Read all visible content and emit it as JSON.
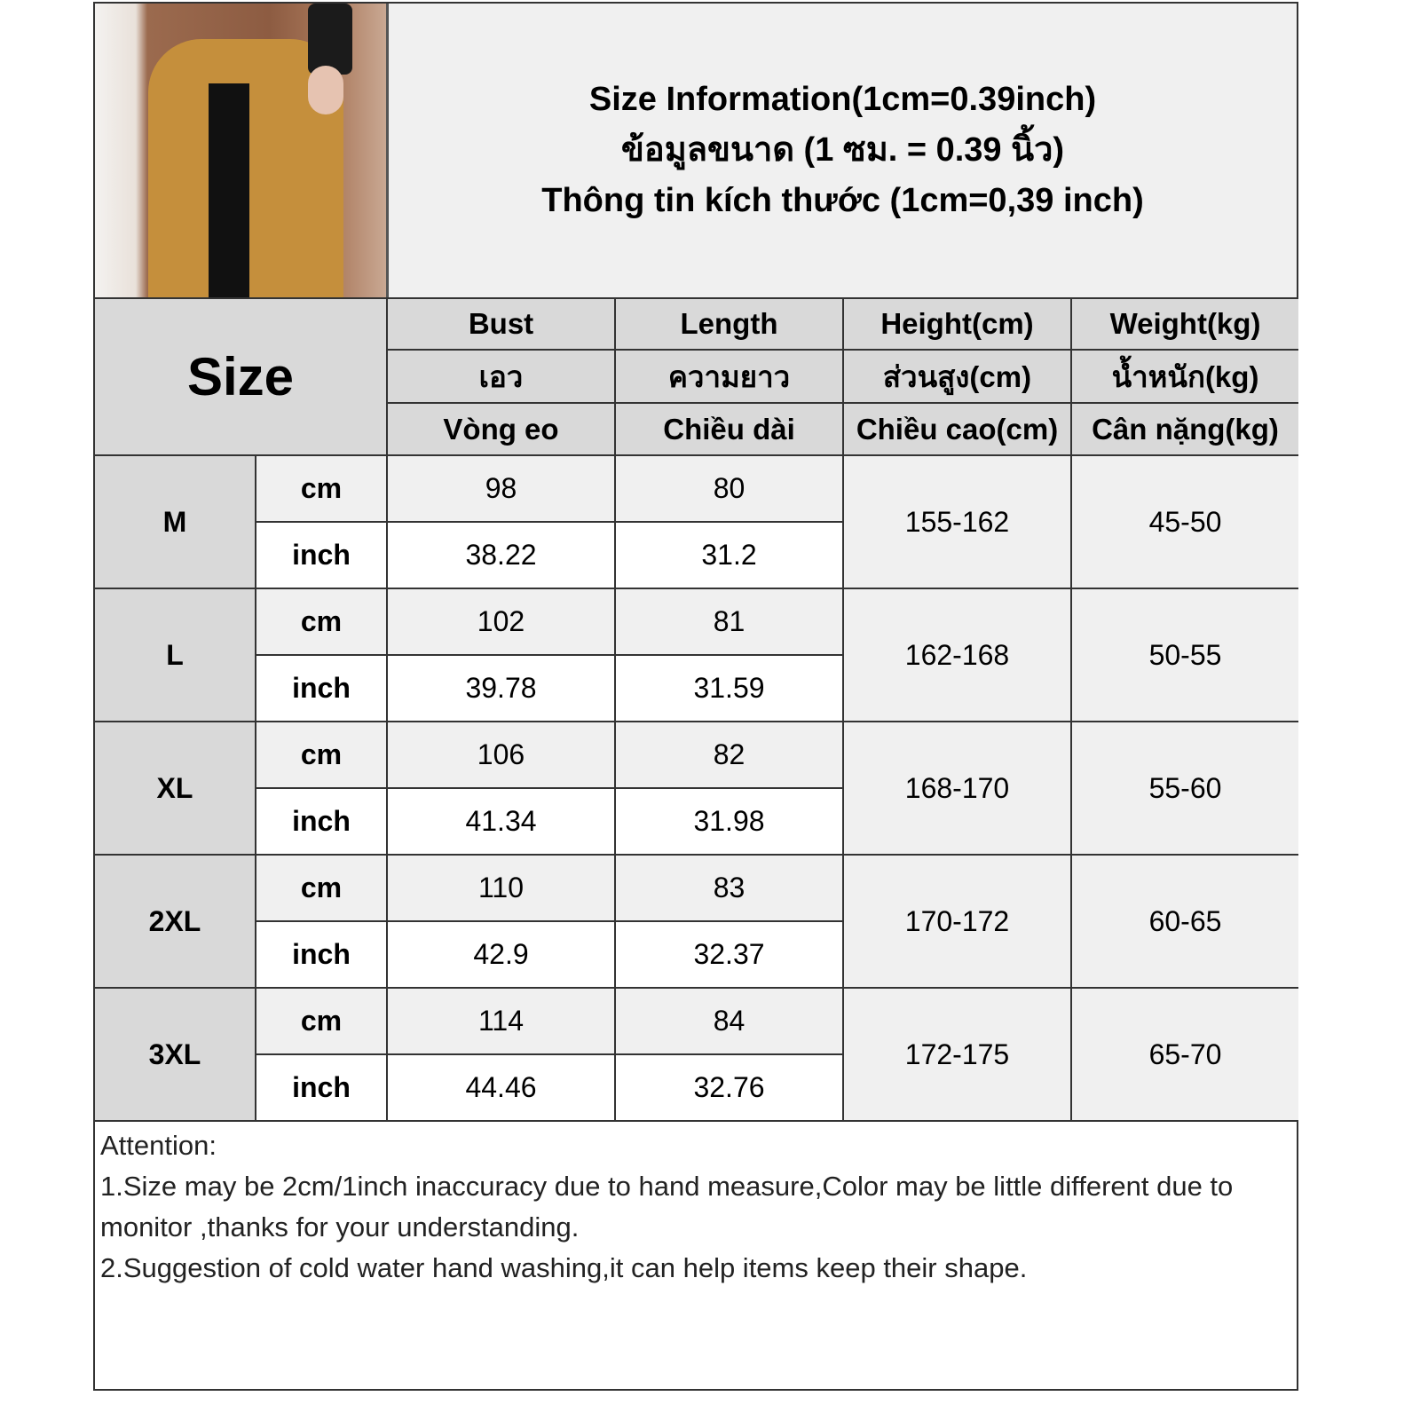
{
  "title": {
    "line1": "Size Information(1cm=0.39inch)",
    "line2": "ข้อมูลขนาด (1 ซม. = 0.39 นิ้ว)",
    "line3": "Thông tin kích thước (1cm=0,39 inch)"
  },
  "header": {
    "size_label": "Size",
    "columns": [
      {
        "en": "Bust",
        "th": "เอว",
        "vi": "Vòng eo"
      },
      {
        "en": "Length",
        "th": "ความยาว",
        "vi": "Chiều dài"
      },
      {
        "en": "Height(cm)",
        "th": "ส่วนสูง(cm)",
        "vi": "Chiều cao(cm)"
      },
      {
        "en": "Weight(kg)",
        "th": "น้ำหนัก(kg)",
        "vi": "Cân nặng(kg)"
      }
    ]
  },
  "units": {
    "cm": "cm",
    "inch": "inch"
  },
  "rows": [
    {
      "size": "M",
      "bust_cm": "98",
      "length_cm": "80",
      "bust_inch": "38.22",
      "length_inch": "31.2",
      "height": "155-162",
      "weight": "45-50"
    },
    {
      "size": "L",
      "bust_cm": "102",
      "length_cm": "81",
      "bust_inch": "39.78",
      "length_inch": "31.59",
      "height": "162-168",
      "weight": "50-55"
    },
    {
      "size": "XL",
      "bust_cm": "106",
      "length_cm": "82",
      "bust_inch": "41.34",
      "length_inch": "31.98",
      "height": "168-170",
      "weight": "55-60"
    },
    {
      "size": "2XL",
      "bust_cm": "110",
      "length_cm": "83",
      "bust_inch": "42.9",
      "length_inch": "32.37",
      "height": "170-172",
      "weight": "60-65"
    },
    {
      "size": "3XL",
      "bust_cm": "114",
      "length_cm": "84",
      "bust_inch": "44.46",
      "length_inch": "32.76",
      "height": "172-175",
      "weight": "65-70"
    }
  ],
  "notes": {
    "heading": "Attention:",
    "line1": "1.Size may be 2cm/1inch inaccuracy due to hand measure,Color may be little different due to monitor ,thanks for your understanding.",
    "line2": "2.Suggestion of cold water hand washing,it can help items keep their shape."
  }
}
